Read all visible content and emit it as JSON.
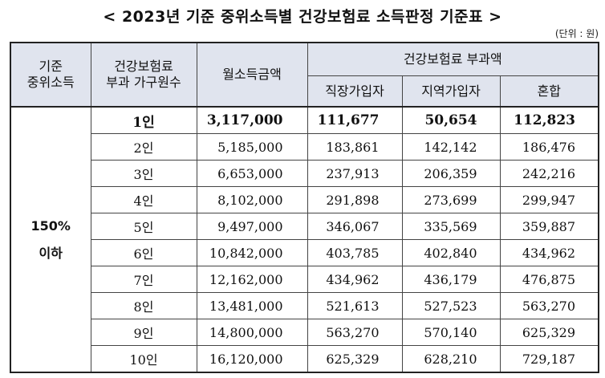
{
  "title": "< 2023년 기준 중위소득별 건강보험료 소득판정 기준표 >",
  "unit": "(단위 : 원)",
  "headers": {
    "median_income_line1": "기준",
    "median_income_line2": "중위소득",
    "household_line1": "건강보험료",
    "household_line2": "부과 가구원수",
    "monthly_income": "월소득금액",
    "premium_group": "건강보험료 부과액",
    "employee": "직장가입자",
    "regional": "지역가입자",
    "mixed": "혼합"
  },
  "group": {
    "line1": "150%",
    "line2": "이하"
  },
  "rows": [
    {
      "members": "1인",
      "income": "3,117,000",
      "employee": "111,677",
      "regional": "50,654",
      "mixed": "112,823"
    },
    {
      "members": "2인",
      "income": "5,185,000",
      "employee": "183,861",
      "regional": "142,142",
      "mixed": "186,476"
    },
    {
      "members": "3인",
      "income": "6,653,000",
      "employee": "237,913",
      "regional": "206,359",
      "mixed": "242,216"
    },
    {
      "members": "4인",
      "income": "8,102,000",
      "employee": "291,898",
      "regional": "273,699",
      "mixed": "299,947"
    },
    {
      "members": "5인",
      "income": "9,497,000",
      "employee": "346,067",
      "regional": "335,569",
      "mixed": "359,887"
    },
    {
      "members": "6인",
      "income": "10,842,000",
      "employee": "403,785",
      "regional": "402,840",
      "mixed": "434,962"
    },
    {
      "members": "7인",
      "income": "12,162,000",
      "employee": "434,962",
      "regional": "436,179",
      "mixed": "476,875"
    },
    {
      "members": "8인",
      "income": "13,481,000",
      "employee": "521,613",
      "regional": "527,523",
      "mixed": "563,270"
    },
    {
      "members": "9인",
      "income": "14,800,000",
      "employee": "563,270",
      "regional": "570,140",
      "mixed": "625,329"
    },
    {
      "members": "10인",
      "income": "16,120,000",
      "employee": "625,329",
      "regional": "628,210",
      "mixed": "729,187"
    }
  ]
}
